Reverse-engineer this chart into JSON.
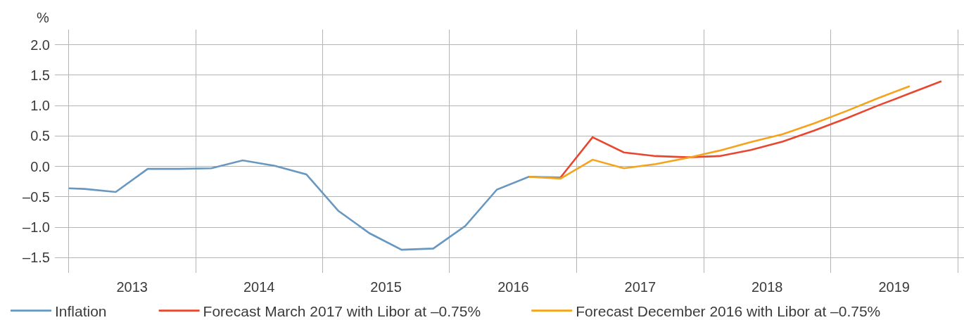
{
  "chart_data": {
    "type": "line",
    "ylabel": "%",
    "xlim": [
      "2012-11-22",
      "2020-01-19"
    ],
    "ylim": [
      -1.75,
      2.25
    ],
    "xticks": [
      {
        "value": "2013-01-01",
        "label": null
      },
      {
        "value": "2013-07-02",
        "label": "2013"
      },
      {
        "value": "2014-01-01",
        "label": null
      },
      {
        "value": "2014-07-02",
        "label": "2014"
      },
      {
        "value": "2015-01-01",
        "label": null
      },
      {
        "value": "2015-07-02",
        "label": "2015"
      },
      {
        "value": "2016-01-01",
        "label": null
      },
      {
        "value": "2016-07-02",
        "label": "2016"
      },
      {
        "value": "2017-01-01",
        "label": null
      },
      {
        "value": "2017-07-02",
        "label": "2017"
      },
      {
        "value": "2018-01-01",
        "label": null
      },
      {
        "value": "2018-07-02",
        "label": "2018"
      },
      {
        "value": "2019-01-01",
        "label": null
      },
      {
        "value": "2019-07-02",
        "label": "2019"
      },
      {
        "value": "2020-01-01",
        "label": null
      }
    ],
    "yticks": [
      {
        "value": -1.5,
        "label": "–1.5"
      },
      {
        "value": -1,
        "label": "–1.0"
      },
      {
        "value": -0.5,
        "label": "–0.5"
      },
      {
        "value": 0,
        "label": "0.0"
      },
      {
        "value": 0.5,
        "label": "0.5"
      },
      {
        "value": 1,
        "label": "1.0"
      },
      {
        "value": 1.5,
        "label": "1.5"
      },
      {
        "value": 2,
        "label": "2.0"
      }
    ],
    "grid": true,
    "legend": "bottom",
    "marker": "none",
    "line_style": "solid",
    "series": [
      {
        "name": "Inflation",
        "color": "#6897c0",
        "x": [
          "2013-01-01",
          "2013-02-15",
          "2013-05-16",
          "2013-08-16",
          "2013-11-15",
          "2014-02-15",
          "2014-05-16",
          "2014-08-16",
          "2014-11-15",
          "2015-02-15",
          "2015-05-16",
          "2015-08-16",
          "2015-11-15",
          "2016-02-15",
          "2016-05-16",
          "2016-08-16",
          "2016-11-15"
        ],
        "values": [
          -0.36,
          -0.37,
          -0.42,
          -0.04,
          -0.04,
          -0.03,
          0.1,
          0.01,
          -0.13,
          -0.73,
          -1.1,
          -1.37,
          -1.35,
          -0.98,
          -0.38,
          -0.17,
          -0.18
        ]
      },
      {
        "name": "Forecast March 2017 with Libor at –0.75%",
        "color": "#e9462f",
        "x": [
          "2016-11-15",
          "2017-02-15",
          "2017-05-16",
          "2017-08-16",
          "2017-11-15",
          "2018-02-15",
          "2018-05-16",
          "2018-08-16",
          "2018-11-15",
          "2019-02-15",
          "2019-05-16",
          "2019-08-16",
          "2019-11-15"
        ],
        "values": [
          -0.18,
          0.48,
          0.23,
          0.17,
          0.15,
          0.17,
          0.27,
          0.41,
          0.59,
          0.79,
          1.0,
          1.2,
          1.4
        ]
      },
      {
        "name": "Forecast December 2016 with Libor at –0.75%",
        "color": "#f6a31b",
        "x": [
          "2016-08-16",
          "2016-11-15",
          "2017-02-15",
          "2017-05-16",
          "2017-08-16",
          "2017-11-15",
          "2018-02-15",
          "2018-05-16",
          "2018-08-16",
          "2018-11-15",
          "2019-02-15",
          "2019-05-16",
          "2019-08-16"
        ],
        "values": [
          -0.17,
          -0.2,
          0.11,
          -0.03,
          0.04,
          0.14,
          0.26,
          0.4,
          0.53,
          0.71,
          0.91,
          1.12,
          1.32
        ]
      }
    ]
  }
}
